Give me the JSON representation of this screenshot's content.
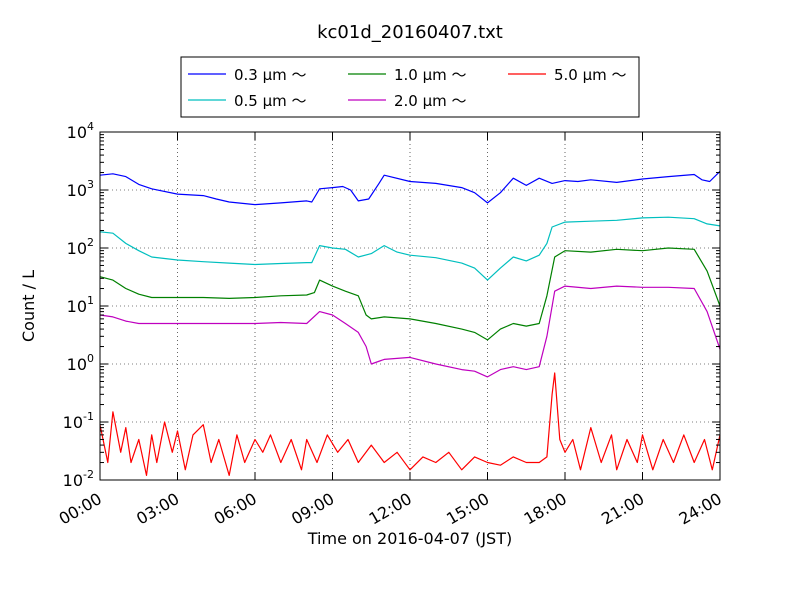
{
  "chart_data": {
    "type": "line",
    "title": "kc01d_20160407.txt",
    "xlabel": "Time on 2016-04-07 (JST)",
    "ylabel": "Count / L",
    "xlim": [
      0,
      24
    ],
    "ylim": [
      0.01,
      10000
    ],
    "yscale": "log",
    "grid": true,
    "legend_position": "top-center",
    "x_ticks": [
      "00:00",
      "03:00",
      "06:00",
      "09:00",
      "12:00",
      "15:00",
      "18:00",
      "21:00",
      "24:00"
    ],
    "y_ticks": [
      {
        "base": "10",
        "exp": "-2"
      },
      {
        "base": "10",
        "exp": "-1"
      },
      {
        "base": "10",
        "exp": "0"
      },
      {
        "base": "10",
        "exp": "1"
      },
      {
        "base": "10",
        "exp": "2"
      },
      {
        "base": "10",
        "exp": "3"
      },
      {
        "base": "10",
        "exp": "4"
      }
    ],
    "series": [
      {
        "name": "0.3 μm ～",
        "color": "#0000ff",
        "points": [
          [
            0,
            1800
          ],
          [
            0.5,
            1900
          ],
          [
            1,
            1700
          ],
          [
            1.5,
            1250
          ],
          [
            2,
            1050
          ],
          [
            3,
            850
          ],
          [
            4,
            800
          ],
          [
            4.5,
            700
          ],
          [
            5,
            620
          ],
          [
            6,
            560
          ],
          [
            7,
            600
          ],
          [
            8,
            650
          ],
          [
            8.2,
            620
          ],
          [
            8.5,
            1050
          ],
          [
            9,
            1100
          ],
          [
            9.4,
            1150
          ],
          [
            9.7,
            1000
          ],
          [
            10,
            650
          ],
          [
            10.4,
            700
          ],
          [
            10.8,
            1300
          ],
          [
            11,
            1800
          ],
          [
            12,
            1400
          ],
          [
            13,
            1300
          ],
          [
            14,
            1100
          ],
          [
            14.5,
            900
          ],
          [
            15,
            600
          ],
          [
            15.5,
            900
          ],
          [
            16,
            1600
          ],
          [
            16.5,
            1200
          ],
          [
            17,
            1600
          ],
          [
            17.5,
            1300
          ],
          [
            18,
            1450
          ],
          [
            18.5,
            1400
          ],
          [
            19,
            1500
          ],
          [
            20,
            1350
          ],
          [
            21,
            1550
          ],
          [
            22,
            1700
          ],
          [
            23,
            1850
          ],
          [
            23.3,
            1500
          ],
          [
            23.6,
            1400
          ],
          [
            24,
            2100
          ]
        ]
      },
      {
        "name": "0.5 μm ～",
        "color": "#00bfbf",
        "points": [
          [
            0,
            190
          ],
          [
            0.5,
            180
          ],
          [
            1,
            120
          ],
          [
            1.5,
            90
          ],
          [
            2,
            70
          ],
          [
            3,
            62
          ],
          [
            4,
            58
          ],
          [
            5,
            55
          ],
          [
            6,
            52
          ],
          [
            7,
            54
          ],
          [
            8,
            56
          ],
          [
            8.2,
            56
          ],
          [
            8.5,
            110
          ],
          [
            9,
            100
          ],
          [
            9.5,
            95
          ],
          [
            10,
            70
          ],
          [
            10.5,
            80
          ],
          [
            11,
            110
          ],
          [
            11.5,
            85
          ],
          [
            12,
            75
          ],
          [
            13,
            68
          ],
          [
            14,
            55
          ],
          [
            14.5,
            45
          ],
          [
            15,
            28
          ],
          [
            15.5,
            45
          ],
          [
            16,
            70
          ],
          [
            16.5,
            60
          ],
          [
            17,
            75
          ],
          [
            17.3,
            120
          ],
          [
            17.5,
            230
          ],
          [
            18,
            280
          ],
          [
            19,
            290
          ],
          [
            20,
            300
          ],
          [
            21,
            330
          ],
          [
            22,
            340
          ],
          [
            23,
            320
          ],
          [
            23.5,
            260
          ],
          [
            24,
            240
          ]
        ]
      },
      {
        "name": "1.0 μm ～",
        "color": "#008000",
        "points": [
          [
            0,
            32
          ],
          [
            0.5,
            28
          ],
          [
            1,
            20
          ],
          [
            1.5,
            16
          ],
          [
            2,
            14
          ],
          [
            3,
            14
          ],
          [
            4,
            14
          ],
          [
            5,
            13.5
          ],
          [
            6,
            14
          ],
          [
            7,
            15
          ],
          [
            8,
            15.5
          ],
          [
            8.3,
            17
          ],
          [
            8.5,
            28
          ],
          [
            9,
            22
          ],
          [
            9.5,
            18
          ],
          [
            10,
            15
          ],
          [
            10.3,
            7
          ],
          [
            10.5,
            6
          ],
          [
            11,
            6.5
          ],
          [
            12,
            6
          ],
          [
            13,
            5
          ],
          [
            14,
            4
          ],
          [
            14.5,
            3.5
          ],
          [
            15,
            2.6
          ],
          [
            15.5,
            4
          ],
          [
            16,
            5
          ],
          [
            16.5,
            4.5
          ],
          [
            17,
            5
          ],
          [
            17.3,
            15
          ],
          [
            17.6,
            70
          ],
          [
            18,
            90
          ],
          [
            19,
            85
          ],
          [
            20,
            95
          ],
          [
            21,
            90
          ],
          [
            22,
            100
          ],
          [
            23,
            95
          ],
          [
            23.5,
            40
          ],
          [
            24,
            10
          ]
        ]
      },
      {
        "name": "2.0 μm ～",
        "color": "#bf00bf",
        "points": [
          [
            0,
            7
          ],
          [
            0.5,
            6.5
          ],
          [
            1,
            5.5
          ],
          [
            1.5,
            5
          ],
          [
            2,
            5
          ],
          [
            3,
            5
          ],
          [
            4,
            5
          ],
          [
            5,
            5
          ],
          [
            6,
            5
          ],
          [
            7,
            5.2
          ],
          [
            8,
            5
          ],
          [
            8.5,
            8
          ],
          [
            9,
            7
          ],
          [
            9.5,
            5
          ],
          [
            10,
            3.5
          ],
          [
            10.3,
            2
          ],
          [
            10.5,
            1
          ],
          [
            11,
            1.2
          ],
          [
            12,
            1.3
          ],
          [
            13,
            1
          ],
          [
            14,
            0.8
          ],
          [
            14.5,
            0.75
          ],
          [
            15,
            0.6
          ],
          [
            15.5,
            0.8
          ],
          [
            16,
            0.9
          ],
          [
            16.5,
            0.8
          ],
          [
            17,
            0.9
          ],
          [
            17.3,
            3
          ],
          [
            17.6,
            18
          ],
          [
            18,
            22
          ],
          [
            19,
            20
          ],
          [
            20,
            22
          ],
          [
            21,
            21
          ],
          [
            22,
            21
          ],
          [
            23,
            20
          ],
          [
            23.5,
            8
          ],
          [
            24,
            1.8
          ]
        ]
      },
      {
        "name": "5.0 μm ～",
        "color": "#ff0000",
        "points": [
          [
            0,
            0.09
          ],
          [
            0.3,
            0.02
          ],
          [
            0.5,
            0.15
          ],
          [
            0.8,
            0.03
          ],
          [
            1,
            0.08
          ],
          [
            1.2,
            0.02
          ],
          [
            1.5,
            0.05
          ],
          [
            1.8,
            0.012
          ],
          [
            2,
            0.06
          ],
          [
            2.2,
            0.02
          ],
          [
            2.5,
            0.1
          ],
          [
            2.8,
            0.03
          ],
          [
            3,
            0.07
          ],
          [
            3.3,
            0.015
          ],
          [
            3.6,
            0.06
          ],
          [
            4,
            0.09
          ],
          [
            4.3,
            0.02
          ],
          [
            4.6,
            0.05
          ],
          [
            5,
            0.012
          ],
          [
            5.3,
            0.06
          ],
          [
            5.6,
            0.02
          ],
          [
            6,
            0.05
          ],
          [
            6.3,
            0.03
          ],
          [
            6.6,
            0.06
          ],
          [
            7,
            0.02
          ],
          [
            7.4,
            0.05
          ],
          [
            7.8,
            0.015
          ],
          [
            8,
            0.05
          ],
          [
            8.4,
            0.02
          ],
          [
            8.8,
            0.06
          ],
          [
            9.2,
            0.03
          ],
          [
            9.6,
            0.05
          ],
          [
            10,
            0.02
          ],
          [
            10.5,
            0.04
          ],
          [
            11,
            0.02
          ],
          [
            11.5,
            0.03
          ],
          [
            12,
            0.015
          ],
          [
            12.5,
            0.025
          ],
          [
            13,
            0.02
          ],
          [
            13.5,
            0.03
          ],
          [
            14,
            0.015
          ],
          [
            14.5,
            0.025
          ],
          [
            15,
            0.02
          ],
          [
            15.5,
            0.018
          ],
          [
            16,
            0.025
          ],
          [
            16.5,
            0.02
          ],
          [
            17,
            0.02
          ],
          [
            17.3,
            0.025
          ],
          [
            17.5,
            0.3
          ],
          [
            17.6,
            0.7
          ],
          [
            17.8,
            0.05
          ],
          [
            18,
            0.03
          ],
          [
            18.3,
            0.05
          ],
          [
            18.6,
            0.015
          ],
          [
            19,
            0.08
          ],
          [
            19.4,
            0.02
          ],
          [
            19.8,
            0.06
          ],
          [
            20,
            0.015
          ],
          [
            20.4,
            0.05
          ],
          [
            20.8,
            0.02
          ],
          [
            21,
            0.06
          ],
          [
            21.4,
            0.015
          ],
          [
            21.8,
            0.05
          ],
          [
            22.2,
            0.02
          ],
          [
            22.6,
            0.06
          ],
          [
            23,
            0.02
          ],
          [
            23.4,
            0.05
          ],
          [
            23.7,
            0.015
          ],
          [
            24,
            0.06
          ]
        ]
      }
    ]
  }
}
